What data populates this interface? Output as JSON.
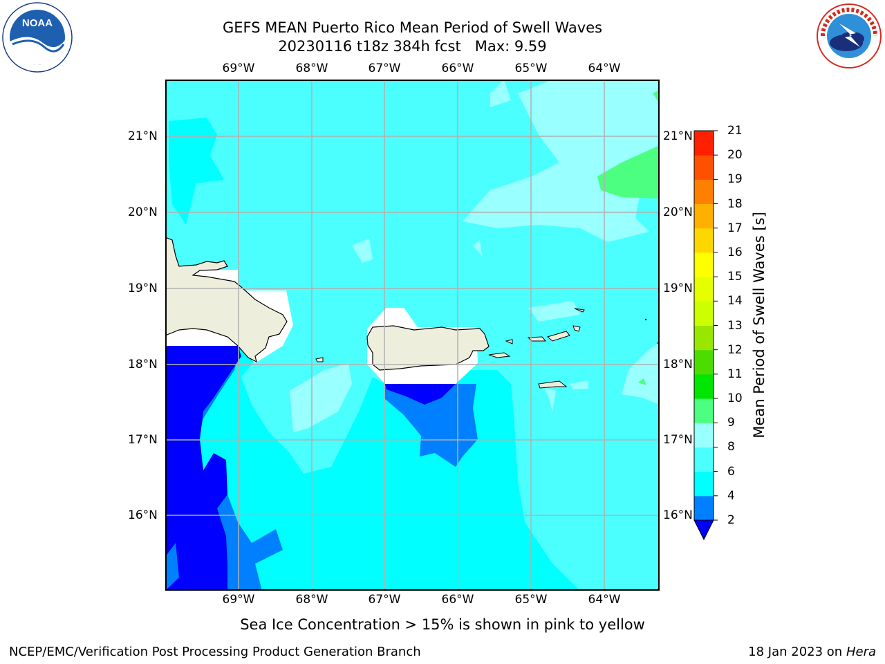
{
  "title_line1": "GEFS MEAN Puerto Rico Mean Period of Swell Waves",
  "title_line2": "20230116 t18z 384h fcst   Max: 9.59",
  "lon_labels": [
    "69°W",
    "68°W",
    "67°W",
    "66°W",
    "65°W",
    "64°W"
  ],
  "lat_labels": [
    "21°N",
    "20°N",
    "19°N",
    "18°N",
    "17°N",
    "16°N"
  ],
  "colorbar": {
    "label": "Mean Period of Swell Waves [s]",
    "ticks": [
      "2",
      "4",
      "6",
      "8",
      "9",
      "10",
      "11",
      "12",
      "13",
      "14",
      "15",
      "16",
      "17",
      "18",
      "19",
      "20",
      "21"
    ],
    "colors": [
      "#0000ff",
      "#0080ff",
      "#00ffff",
      "#4cffff",
      "#99ffff",
      "#4cff80",
      "#00e600",
      "#4cdc00",
      "#99e600",
      "#ccff00",
      "#e6ff00",
      "#ffff00",
      "#ffd700",
      "#ffb000",
      "#ff8000",
      "#ff5000",
      "#ff2000",
      "#ff0000"
    ]
  },
  "note": "Sea Ice Concentration > 15% is shown in pink to yellow",
  "credit": "NCEP/EMC/Verification Post Processing Product Generation Branch",
  "date": "18 Jan 2023 on",
  "host": "Hera",
  "noaa_logo_text": "NOAA",
  "noaa_logo_ring": "NATIONAL OCEANIC AND ATMOSPHERIC ADMINISTRATION · U.S. DEPARTMENT OF COMMERCE",
  "nws_logo_ring": "NATIONAL WEATHER SERVICE"
}
